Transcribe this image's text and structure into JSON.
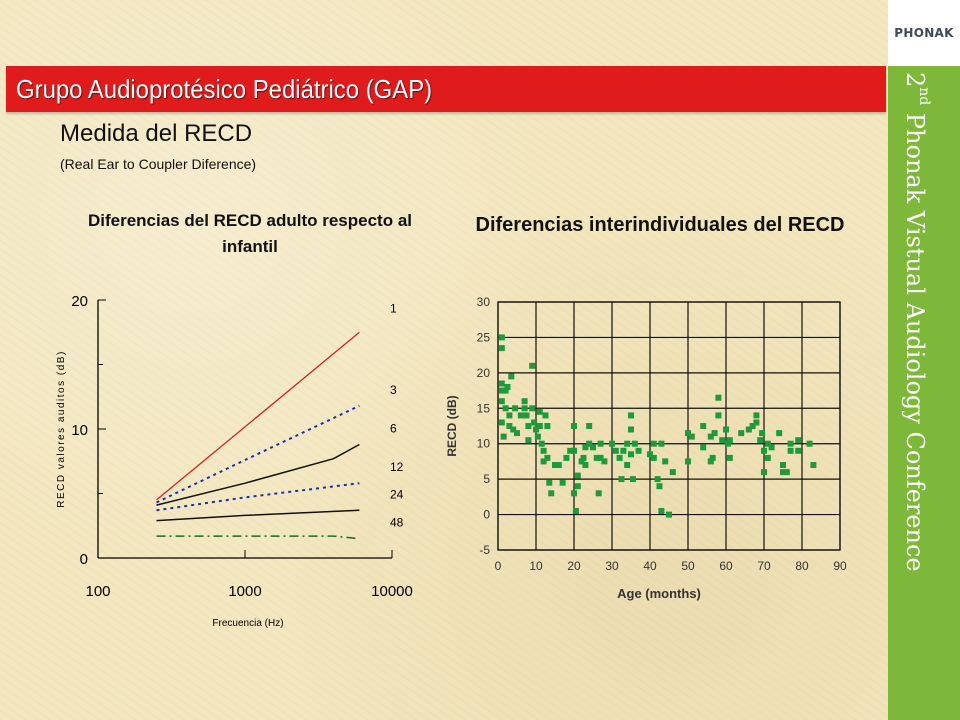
{
  "header": {
    "title": "Grupo Audioprotésico Pediátrico (GAP)",
    "logo": "PHONAK",
    "conference": {
      "pre": "2",
      "sup": "nd",
      "post": " Phonak Vistual Audiology Conference"
    }
  },
  "slide": {
    "subtitle": "Medida del RECD",
    "subsubtitle": "(Real Ear to Coupler Diference)"
  },
  "colors": {
    "red_bar": "#e01b1b",
    "green_band": "#7db83a",
    "scatter": "#1f9a3a",
    "red_line": "#d42020",
    "blue_line": "#1a2fb0"
  },
  "chart_data": [
    {
      "type": "line",
      "title": "Diferencias del RECD adulto respecto al infantil",
      "xlabel": "Frecuencia (Hz)",
      "ylabel": "RECD valores auditos (dB)",
      "x_scale": "log",
      "xlim": [
        100,
        10000
      ],
      "ylim": [
        0,
        20
      ],
      "xticks": [
        "100",
        "1000",
        "10000"
      ],
      "yticks": [
        "0",
        "10",
        "20"
      ],
      "grid": false,
      "series": [
        {
          "name": "1",
          "style": "solid-red",
          "x": [
            250,
            6000
          ],
          "y": [
            4.5,
            17.5
          ]
        },
        {
          "name": "3",
          "style": "dotted-blue",
          "x": [
            250,
            1000,
            6000
          ],
          "y": [
            4.3,
            7.6,
            11.8
          ]
        },
        {
          "name": "6",
          "style": "solid-black",
          "x": [
            250,
            1000,
            4000,
            6000
          ],
          "y": [
            4.1,
            5.8,
            7.7,
            8.8
          ]
        },
        {
          "name": "12",
          "style": "dotted-blue",
          "x": [
            250,
            1000,
            6000
          ],
          "y": [
            3.7,
            4.7,
            5.8
          ]
        },
        {
          "name": "24",
          "style": "solid-black",
          "x": [
            250,
            1000,
            6000
          ],
          "y": [
            2.9,
            3.3,
            3.7
          ]
        },
        {
          "name": "48",
          "style": "dashdot-green",
          "x": [
            250,
            1000,
            4000,
            6000
          ],
          "y": [
            1.7,
            1.7,
            1.7,
            1.5
          ]
        }
      ]
    },
    {
      "type": "scatter",
      "title": "Diferencias interindividuales del RECD",
      "xlabel": "Age (months)",
      "ylabel": "RECD (dB)",
      "xlim": [
        0,
        90
      ],
      "ylim": [
        -5,
        30
      ],
      "xticks": [
        "0",
        "10",
        "20",
        "30",
        "40",
        "50",
        "60",
        "70",
        "80",
        "90"
      ],
      "yticks": [
        "30",
        "25",
        "20",
        "15",
        "10",
        "5",
        "0",
        "-5"
      ],
      "grid": true,
      "points": [
        [
          1,
          25
        ],
        [
          1,
          23.5
        ],
        [
          1,
          18.5
        ],
        [
          1,
          17.5
        ],
        [
          1,
          16
        ],
        [
          1,
          13
        ],
        [
          1.5,
          11
        ],
        [
          2,
          17.5
        ],
        [
          2,
          15
        ],
        [
          2.5,
          18
        ],
        [
          3,
          14
        ],
        [
          3,
          12.5
        ],
        [
          3.5,
          19.5
        ],
        [
          4,
          12
        ],
        [
          4.5,
          15
        ],
        [
          5,
          11.5
        ],
        [
          6,
          14
        ],
        [
          7,
          16
        ],
        [
          7,
          15
        ],
        [
          7.5,
          14
        ],
        [
          8,
          12.5
        ],
        [
          8,
          10.5
        ],
        [
          9,
          21
        ],
        [
          9,
          15
        ],
        [
          9.5,
          13
        ],
        [
          10,
          12
        ],
        [
          10.5,
          11
        ],
        [
          11,
          14.5
        ],
        [
          11,
          12.5
        ],
        [
          11.5,
          10
        ],
        [
          12,
          9
        ],
        [
          12,
          7.5
        ],
        [
          12.5,
          14
        ],
        [
          13,
          12.5
        ],
        [
          13,
          8
        ],
        [
          13.5,
          4.5
        ],
        [
          14,
          3
        ],
        [
          15,
          7
        ],
        [
          16,
          7
        ],
        [
          17,
          4.5
        ],
        [
          18,
          8
        ],
        [
          19,
          9
        ],
        [
          20,
          12.5
        ],
        [
          20,
          9
        ],
        [
          20,
          3
        ],
        [
          20.5,
          0.5
        ],
        [
          21,
          5.5
        ],
        [
          21,
          4
        ],
        [
          22,
          7.5
        ],
        [
          22.5,
          8
        ],
        [
          23,
          9.5
        ],
        [
          23,
          7
        ],
        [
          24,
          12.5
        ],
        [
          24,
          10
        ],
        [
          25,
          9.5
        ],
        [
          26,
          8
        ],
        [
          26.5,
          3
        ],
        [
          27,
          10
        ],
        [
          27,
          8
        ],
        [
          28,
          7.5
        ],
        [
          30,
          10
        ],
        [
          31,
          9
        ],
        [
          32,
          8
        ],
        [
          32.5,
          5
        ],
        [
          33,
          9
        ],
        [
          34,
          10
        ],
        [
          34,
          7
        ],
        [
          35,
          14
        ],
        [
          35,
          12
        ],
        [
          35,
          8.5
        ],
        [
          35.5,
          5
        ],
        [
          36,
          10
        ],
        [
          37,
          9
        ],
        [
          40,
          8.5
        ],
        [
          41,
          10
        ],
        [
          41,
          8
        ],
        [
          42,
          5
        ],
        [
          42.5,
          4
        ],
        [
          43,
          10
        ],
        [
          43,
          0.5
        ],
        [
          44,
          7.5
        ],
        [
          45,
          0
        ],
        [
          46,
          6
        ],
        [
          50,
          11.5
        ],
        [
          50,
          7.5
        ],
        [
          51,
          11
        ],
        [
          54,
          12.5
        ],
        [
          54,
          9.5
        ],
        [
          56,
          11
        ],
        [
          56,
          7.5
        ],
        [
          56.5,
          8
        ],
        [
          57,
          11.5
        ],
        [
          58,
          16.5
        ],
        [
          58,
          14
        ],
        [
          59,
          10.5
        ],
        [
          60,
          12
        ],
        [
          60.5,
          10
        ],
        [
          61,
          10.5
        ],
        [
          61,
          8
        ],
        [
          64,
          11.5
        ],
        [
          66,
          12
        ],
        [
          67,
          12.5
        ],
        [
          68,
          14
        ],
        [
          68,
          13
        ],
        [
          69,
          10.5
        ],
        [
          69.5,
          11.5
        ],
        [
          70,
          9
        ],
        [
          70,
          6
        ],
        [
          71,
          10
        ],
        [
          71,
          8
        ],
        [
          72,
          9.5
        ],
        [
          74,
          11.5
        ],
        [
          75,
          7
        ],
        [
          75,
          6
        ],
        [
          76,
          6
        ],
        [
          77,
          10
        ],
        [
          77,
          9
        ],
        [
          79,
          10.5
        ],
        [
          79,
          9
        ],
        [
          82,
          10
        ],
        [
          83,
          7
        ]
      ]
    }
  ]
}
